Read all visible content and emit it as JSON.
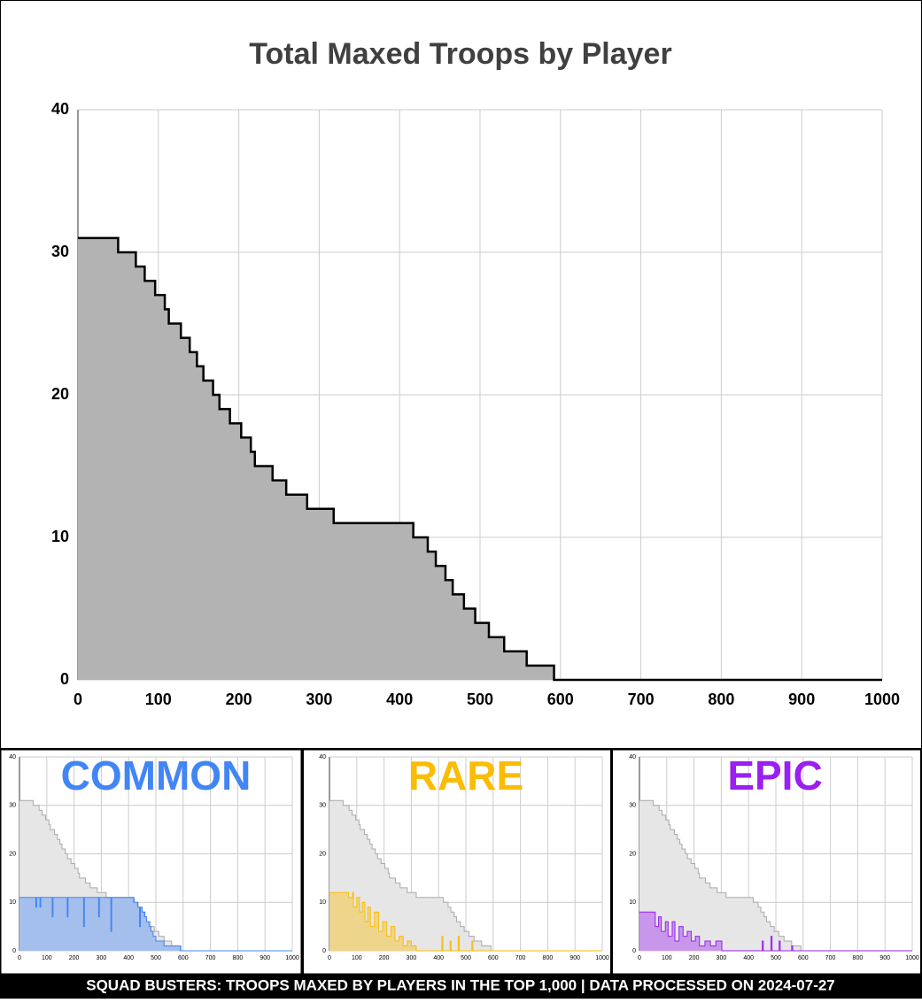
{
  "chart_data": [
    {
      "type": "step-area",
      "title": "Total Maxed Troops by Player",
      "x": [
        0,
        50,
        72,
        83,
        96,
        108,
        113,
        128,
        139,
        148,
        156,
        168,
        176,
        189,
        203,
        215,
        220,
        242,
        259,
        285,
        318,
        417,
        435,
        445,
        457,
        466,
        480,
        494,
        511,
        530,
        558,
        592,
        1000
      ],
      "values": [
        31,
        30,
        29,
        28,
        27,
        26,
        25,
        24,
        23,
        22,
        21,
        20,
        19,
        18,
        17,
        16,
        15,
        14,
        13,
        12,
        11,
        10,
        9,
        8,
        7,
        6,
        5,
        4,
        3,
        2,
        1,
        0,
        0
      ],
      "color": "#b3b3b3",
      "line_color": "#000000",
      "xlim": [
        0,
        1000
      ],
      "ylim": [
        0,
        40
      ],
      "xticks": [
        0,
        100,
        200,
        300,
        400,
        500,
        600,
        700,
        800,
        900,
        1000
      ],
      "yticks": [
        0,
        10,
        20,
        30,
        40
      ],
      "grid": true
    },
    {
      "type": "step-area",
      "title": "COMMON",
      "x": [
        0,
        60,
        63,
        75,
        78,
        120,
        123,
        175,
        178,
        235,
        238,
        290,
        293,
        335,
        338,
        420,
        433,
        440,
        443,
        450,
        460,
        466,
        475,
        482,
        490,
        500,
        530,
        590,
        1000
      ],
      "values": [
        11,
        9,
        11,
        9,
        11,
        7,
        11,
        7,
        11,
        5,
        11,
        7,
        11,
        4,
        11,
        10,
        9,
        5,
        9,
        8,
        7,
        6,
        5,
        4,
        3,
        2,
        1,
        0,
        0
      ],
      "color": "#4285f4",
      "xlim": [
        0,
        1000
      ],
      "ylim": [
        0,
        40
      ],
      "xticks": [
        0,
        100,
        200,
        300,
        400,
        500,
        600,
        700,
        800,
        900,
        1000
      ],
      "yticks": [
        0,
        10,
        20,
        30,
        40
      ],
      "grid": true
    },
    {
      "type": "step-area",
      "title": "RARE",
      "x": [
        0,
        70,
        85,
        88,
        100,
        110,
        120,
        130,
        140,
        150,
        165,
        180,
        195,
        210,
        225,
        240,
        255,
        270,
        285,
        300,
        318,
        410,
        412,
        416,
        440,
        442,
        446,
        470,
        472,
        476,
        520,
        522,
        526,
        1000
      ],
      "values": [
        12,
        11,
        12,
        9,
        11,
        8,
        10,
        6,
        9,
        5,
        8,
        4,
        6,
        3,
        5,
        2,
        3,
        1,
        2,
        1,
        0,
        0,
        3,
        0,
        0,
        2,
        0,
        0,
        3,
        0,
        0,
        2,
        0,
        0
      ],
      "color": "#fbbc04",
      "xlim": [
        0,
        1000
      ],
      "ylim": [
        0,
        40
      ],
      "xticks": [
        0,
        100,
        200,
        300,
        400,
        500,
        600,
        700,
        800,
        900,
        1000
      ],
      "yticks": [
        0,
        10,
        20,
        30,
        40
      ],
      "grid": true
    },
    {
      "type": "step-area",
      "title": "EPIC",
      "x": [
        0,
        58,
        70,
        80,
        95,
        105,
        120,
        130,
        145,
        160,
        175,
        190,
        205,
        220,
        240,
        260,
        280,
        302,
        448,
        450,
        454,
        480,
        482,
        486,
        510,
        512,
        516,
        556,
        558,
        562,
        1000
      ],
      "values": [
        8,
        5,
        7,
        4,
        6,
        3,
        6,
        2,
        5,
        3,
        4,
        2,
        3,
        1,
        2,
        1,
        2,
        0,
        0,
        2,
        0,
        0,
        3,
        0,
        0,
        2,
        0,
        0,
        1,
        0,
        0
      ],
      "color": "#9b1ff0",
      "xlim": [
        0,
        1000
      ],
      "ylim": [
        0,
        40
      ],
      "xticks": [
        0,
        100,
        200,
        300,
        400,
        500,
        600,
        700,
        800,
        900,
        1000
      ],
      "yticks": [
        0,
        10,
        20,
        30,
        40
      ],
      "grid": true
    }
  ],
  "footer": "SQUAD BUSTERS: TROOPS MAXED BY PLAYERS IN THE TOP 1,000 | DATA PROCESSED ON 2024-07-27"
}
